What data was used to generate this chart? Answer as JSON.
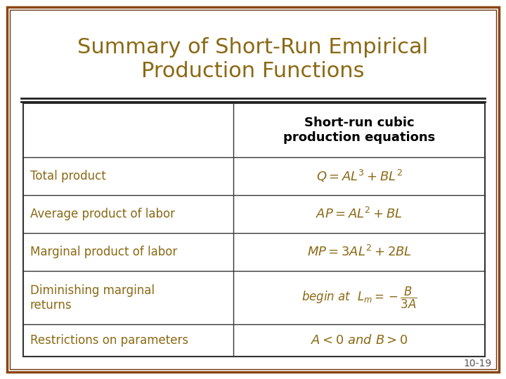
{
  "title_line1": "Summary of Short-Run Empirical",
  "title_line2": "Production Functions",
  "title_color": "#8B6914",
  "background_color": "#FFFFFF",
  "outer_border_color": "#8B4513",
  "inner_border_color": "#6B3410",
  "table_border_color": "#333333",
  "col_header": "Short-run cubic\nproduction equations",
  "col_header_color": "#000000",
  "row_labels": [
    "Total product",
    "Average product of labor",
    "Marginal product of labor",
    "Diminishing marginal\nreturns",
    "Restrictions on parameters"
  ],
  "row_label_color": "#8B6914",
  "equations": [
    "$Q = AL^3 + BL^2$",
    "$AP = AL^2 + BL$",
    "$MP = 3AL^2 + 2BL$",
    "begin at  $L_m = -\\dfrac{B}{3A}$",
    "$A < 0$ and $B > 0$"
  ],
  "equation_color": "#8B6914",
  "page_number": "10-19",
  "page_number_color": "#555555",
  "title_fontsize": 22,
  "header_fontsize": 13,
  "label_fontsize": 12,
  "eq_fontsize": 13
}
